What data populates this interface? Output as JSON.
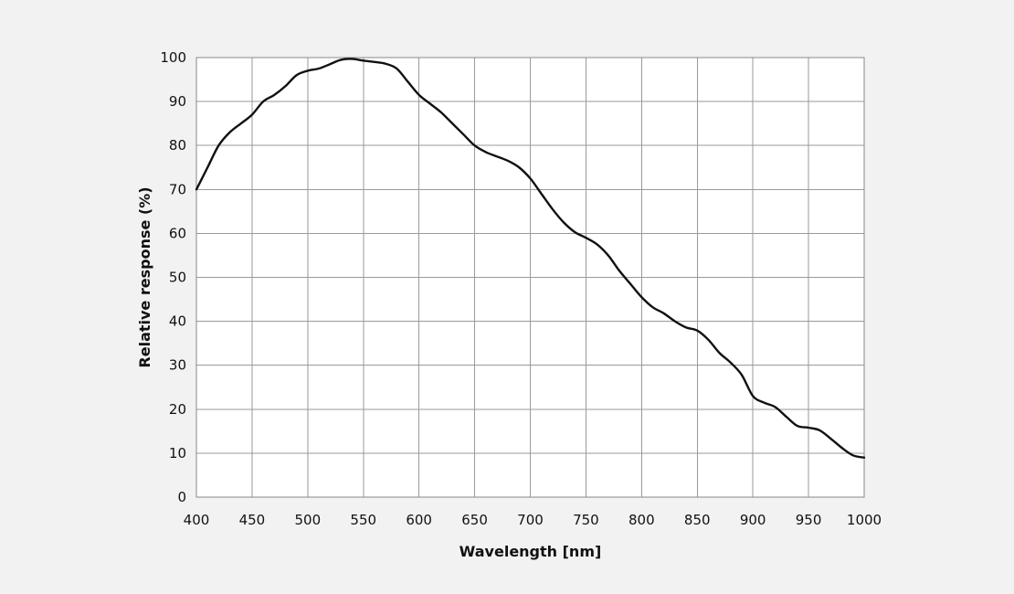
{
  "chart_data": {
    "type": "line",
    "title": "",
    "xlabel": "Wavelength [nm]",
    "ylabel": "Relative response (%)",
    "xlim": [
      400,
      1000
    ],
    "ylim": [
      0,
      100
    ],
    "x_ticks": [
      400,
      450,
      500,
      550,
      600,
      650,
      700,
      750,
      800,
      850,
      900,
      950,
      1000
    ],
    "y_ticks": [
      0,
      10,
      20,
      30,
      40,
      50,
      60,
      70,
      80,
      90,
      100
    ],
    "x_tick_labels": [
      "400",
      "450",
      "500",
      "550",
      "600",
      "650",
      "700",
      "750",
      "800",
      "850",
      "900",
      "950",
      "1000"
    ],
    "y_tick_labels": [
      "0",
      "10",
      "20",
      "30",
      "40",
      "50",
      "60",
      "70",
      "80",
      "90",
      "100"
    ],
    "grid": true,
    "legend": "none",
    "line_color": "#111111",
    "grid_color": "#9a9a9a",
    "background_color": "#ffffff",
    "series": [
      {
        "x": [
          400,
          410,
          420,
          430,
          440,
          450,
          460,
          470,
          480,
          490,
          500,
          510,
          520,
          530,
          540,
          550,
          560,
          570,
          580,
          590,
          600,
          610,
          620,
          630,
          640,
          650,
          660,
          670,
          680,
          690,
          700,
          710,
          720,
          730,
          740,
          750,
          760,
          770,
          780,
          790,
          800,
          810,
          820,
          830,
          840,
          850,
          860,
          870,
          880,
          890,
          900,
          910,
          920,
          930,
          940,
          950,
          960,
          970,
          980,
          990,
          1000
        ],
        "values": [
          70,
          75,
          80,
          83,
          85,
          87,
          90,
          91.5,
          93.5,
          96,
          97,
          97.5,
          98.5,
          99.5,
          99.7,
          99.3,
          99,
          98.6,
          97.5,
          94.5,
          91.5,
          89.5,
          87.5,
          85,
          82.5,
          80,
          78.5,
          77.5,
          76.5,
          75,
          72.5,
          69,
          65.5,
          62.5,
          60.3,
          59,
          57.5,
          55,
          51.5,
          48.5,
          45.5,
          43.2,
          41.8,
          40,
          38.6,
          37.9,
          35.8,
          32.8,
          30.6,
          27.8,
          23,
          21.5,
          20.5,
          18.3,
          16.2,
          15.8,
          15.2,
          13.3,
          11.2,
          9.5,
          9
        ]
      }
    ]
  }
}
